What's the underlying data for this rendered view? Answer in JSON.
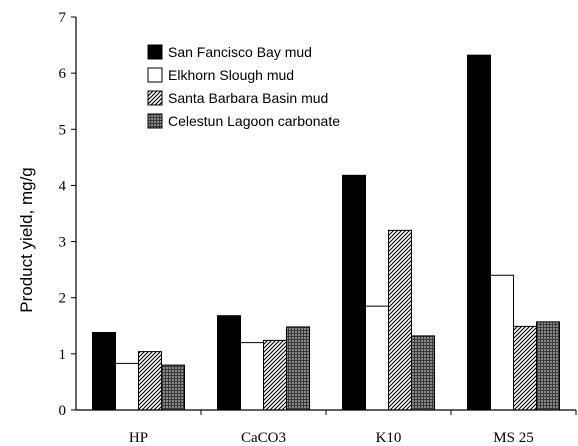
{
  "chart_data": {
    "type": "bar",
    "title": "",
    "xlabel": "",
    "ylabel": "Product yield, mg/g",
    "ylim": [
      0,
      7
    ],
    "yticks": [
      0,
      1,
      2,
      3,
      4,
      5,
      6,
      7
    ],
    "categories": [
      "HP",
      "CaCO3",
      "K10",
      "MS 25"
    ],
    "grid": false,
    "legend_position": "top-left",
    "series": [
      {
        "name": "San Fancisco Bay mud",
        "values": [
          1.38,
          1.68,
          4.18,
          6.32
        ],
        "fill": "solid-black",
        "color": "#000000"
      },
      {
        "name": "Elkhorn Slough mud",
        "values": [
          0.83,
          1.2,
          1.85,
          2.4
        ],
        "fill": "white",
        "color": "#ffffff"
      },
      {
        "name": "Santa Barbara Basin mud",
        "values": [
          1.04,
          1.24,
          3.2,
          1.49
        ],
        "fill": "diagonal-hatch",
        "color": "#555555"
      },
      {
        "name": "Celestun Lagoon carbonate",
        "values": [
          0.8,
          1.48,
          1.32,
          1.57
        ],
        "fill": "crosshatch-gray",
        "color": "#777777"
      }
    ]
  }
}
